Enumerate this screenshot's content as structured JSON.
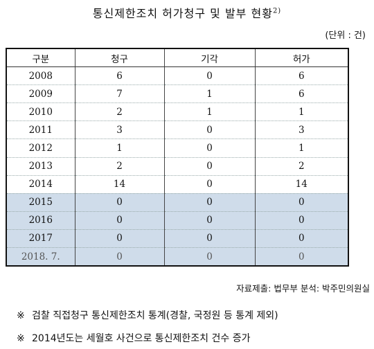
{
  "title": "통신제한조치 허가청구 및 발부 현황",
  "title_footnote": "2)",
  "unit": "(단위 : 건)",
  "table": {
    "headers": [
      "구분",
      "청구",
      "기각",
      "허가"
    ],
    "rows": [
      [
        "2008",
        "6",
        "0",
        "6"
      ],
      [
        "2009",
        "7",
        "1",
        "6"
      ],
      [
        "2010",
        "2",
        "1",
        "1"
      ],
      [
        "2011",
        "3",
        "0",
        "3"
      ],
      [
        "2012",
        "1",
        "0",
        "1"
      ],
      [
        "2013",
        "2",
        "0",
        "2"
      ],
      [
        "2014",
        "14",
        "0",
        "14"
      ],
      [
        "2015",
        "0",
        "0",
        "0"
      ],
      [
        "2016",
        "0",
        "0",
        "0"
      ],
      [
        "2017",
        "0",
        "0",
        "0"
      ],
      [
        "2018. 7.",
        "0",
        "0",
        "0"
      ]
    ],
    "shaded_rows": [
      "2015",
      "2016",
      "2017",
      "2018. 7."
    ],
    "shade_color": "#cfdcea"
  },
  "source": "자료제출: 법무부 분석: 박주민의원실",
  "notes": [
    {
      "mark": "※",
      "text": "검찰 직접청구 통신제한조치 통계(경찰, 국정원 등 통계 제외)"
    },
    {
      "mark": "※",
      "text": "2014년도는 세월호 사건으로 통신제한조치 건수 증가"
    }
  ]
}
